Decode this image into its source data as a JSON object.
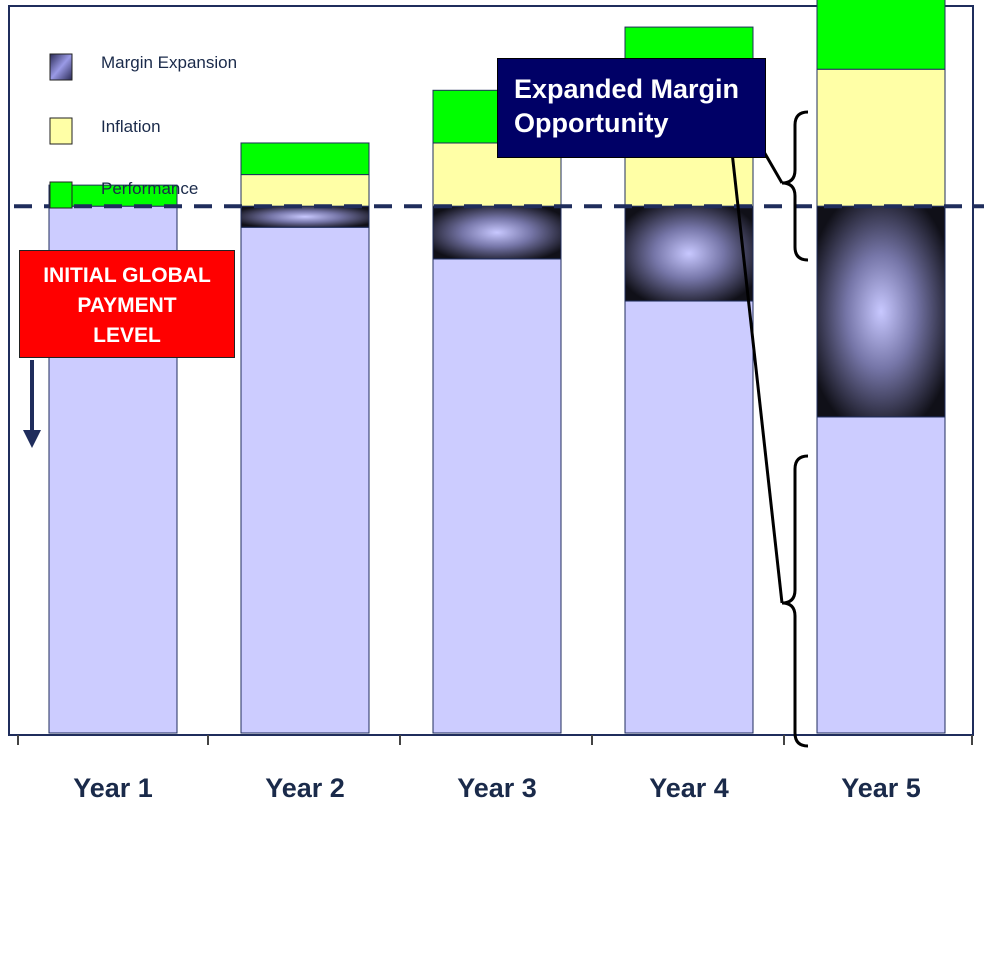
{
  "chart_data": {
    "type": "stacked-bar",
    "categories": [
      "Year 1",
      "Year 2",
      "Year 3",
      "Year 4",
      "Year 5"
    ],
    "baseline": 100,
    "ylim": [
      0,
      138
    ],
    "series": [
      {
        "name": "Margin Expansion",
        "values": [
          0,
          4,
          10,
          18,
          40
        ],
        "color": "#555588"
      },
      {
        "name": "Inflation",
        "values": [
          0,
          6,
          12,
          18,
          26
        ],
        "color": "#ffffa6"
      },
      {
        "name": "Performance",
        "values": [
          4,
          6,
          10,
          16,
          20
        ],
        "color": "#00ff00"
      }
    ],
    "base_color": "#ccccff",
    "baseline_color": "#1f2d5c",
    "annotations": {
      "initial_level": {
        "lines": [
          "INITIAL GLOBAL",
          "PAYMENT",
          "LEVEL"
        ]
      },
      "expanded_margin": {
        "lines": [
          "Expanded Margin",
          "Opportunity"
        ]
      }
    }
  }
}
